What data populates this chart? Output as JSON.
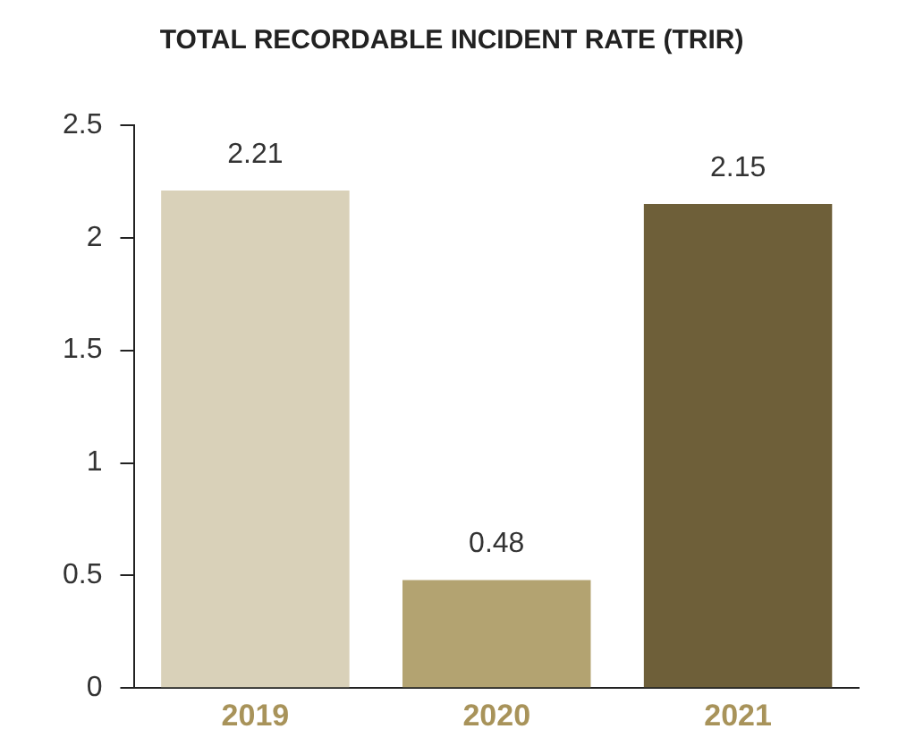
{
  "chart_data": {
    "type": "bar",
    "title": "TOTAL RECORDABLE INCIDENT RATE (TRIR)",
    "categories": [
      "2019",
      "2020",
      "2021"
    ],
    "values": [
      2.21,
      0.48,
      2.15
    ],
    "colors": [
      "#d9d1b9",
      "#b3a371",
      "#6e5f39"
    ],
    "ylim": [
      0,
      2.5
    ],
    "yticks": [
      0,
      0.5,
      1,
      1.5,
      2,
      2.5
    ],
    "grid": false,
    "legend": false,
    "data_labels": true
  }
}
